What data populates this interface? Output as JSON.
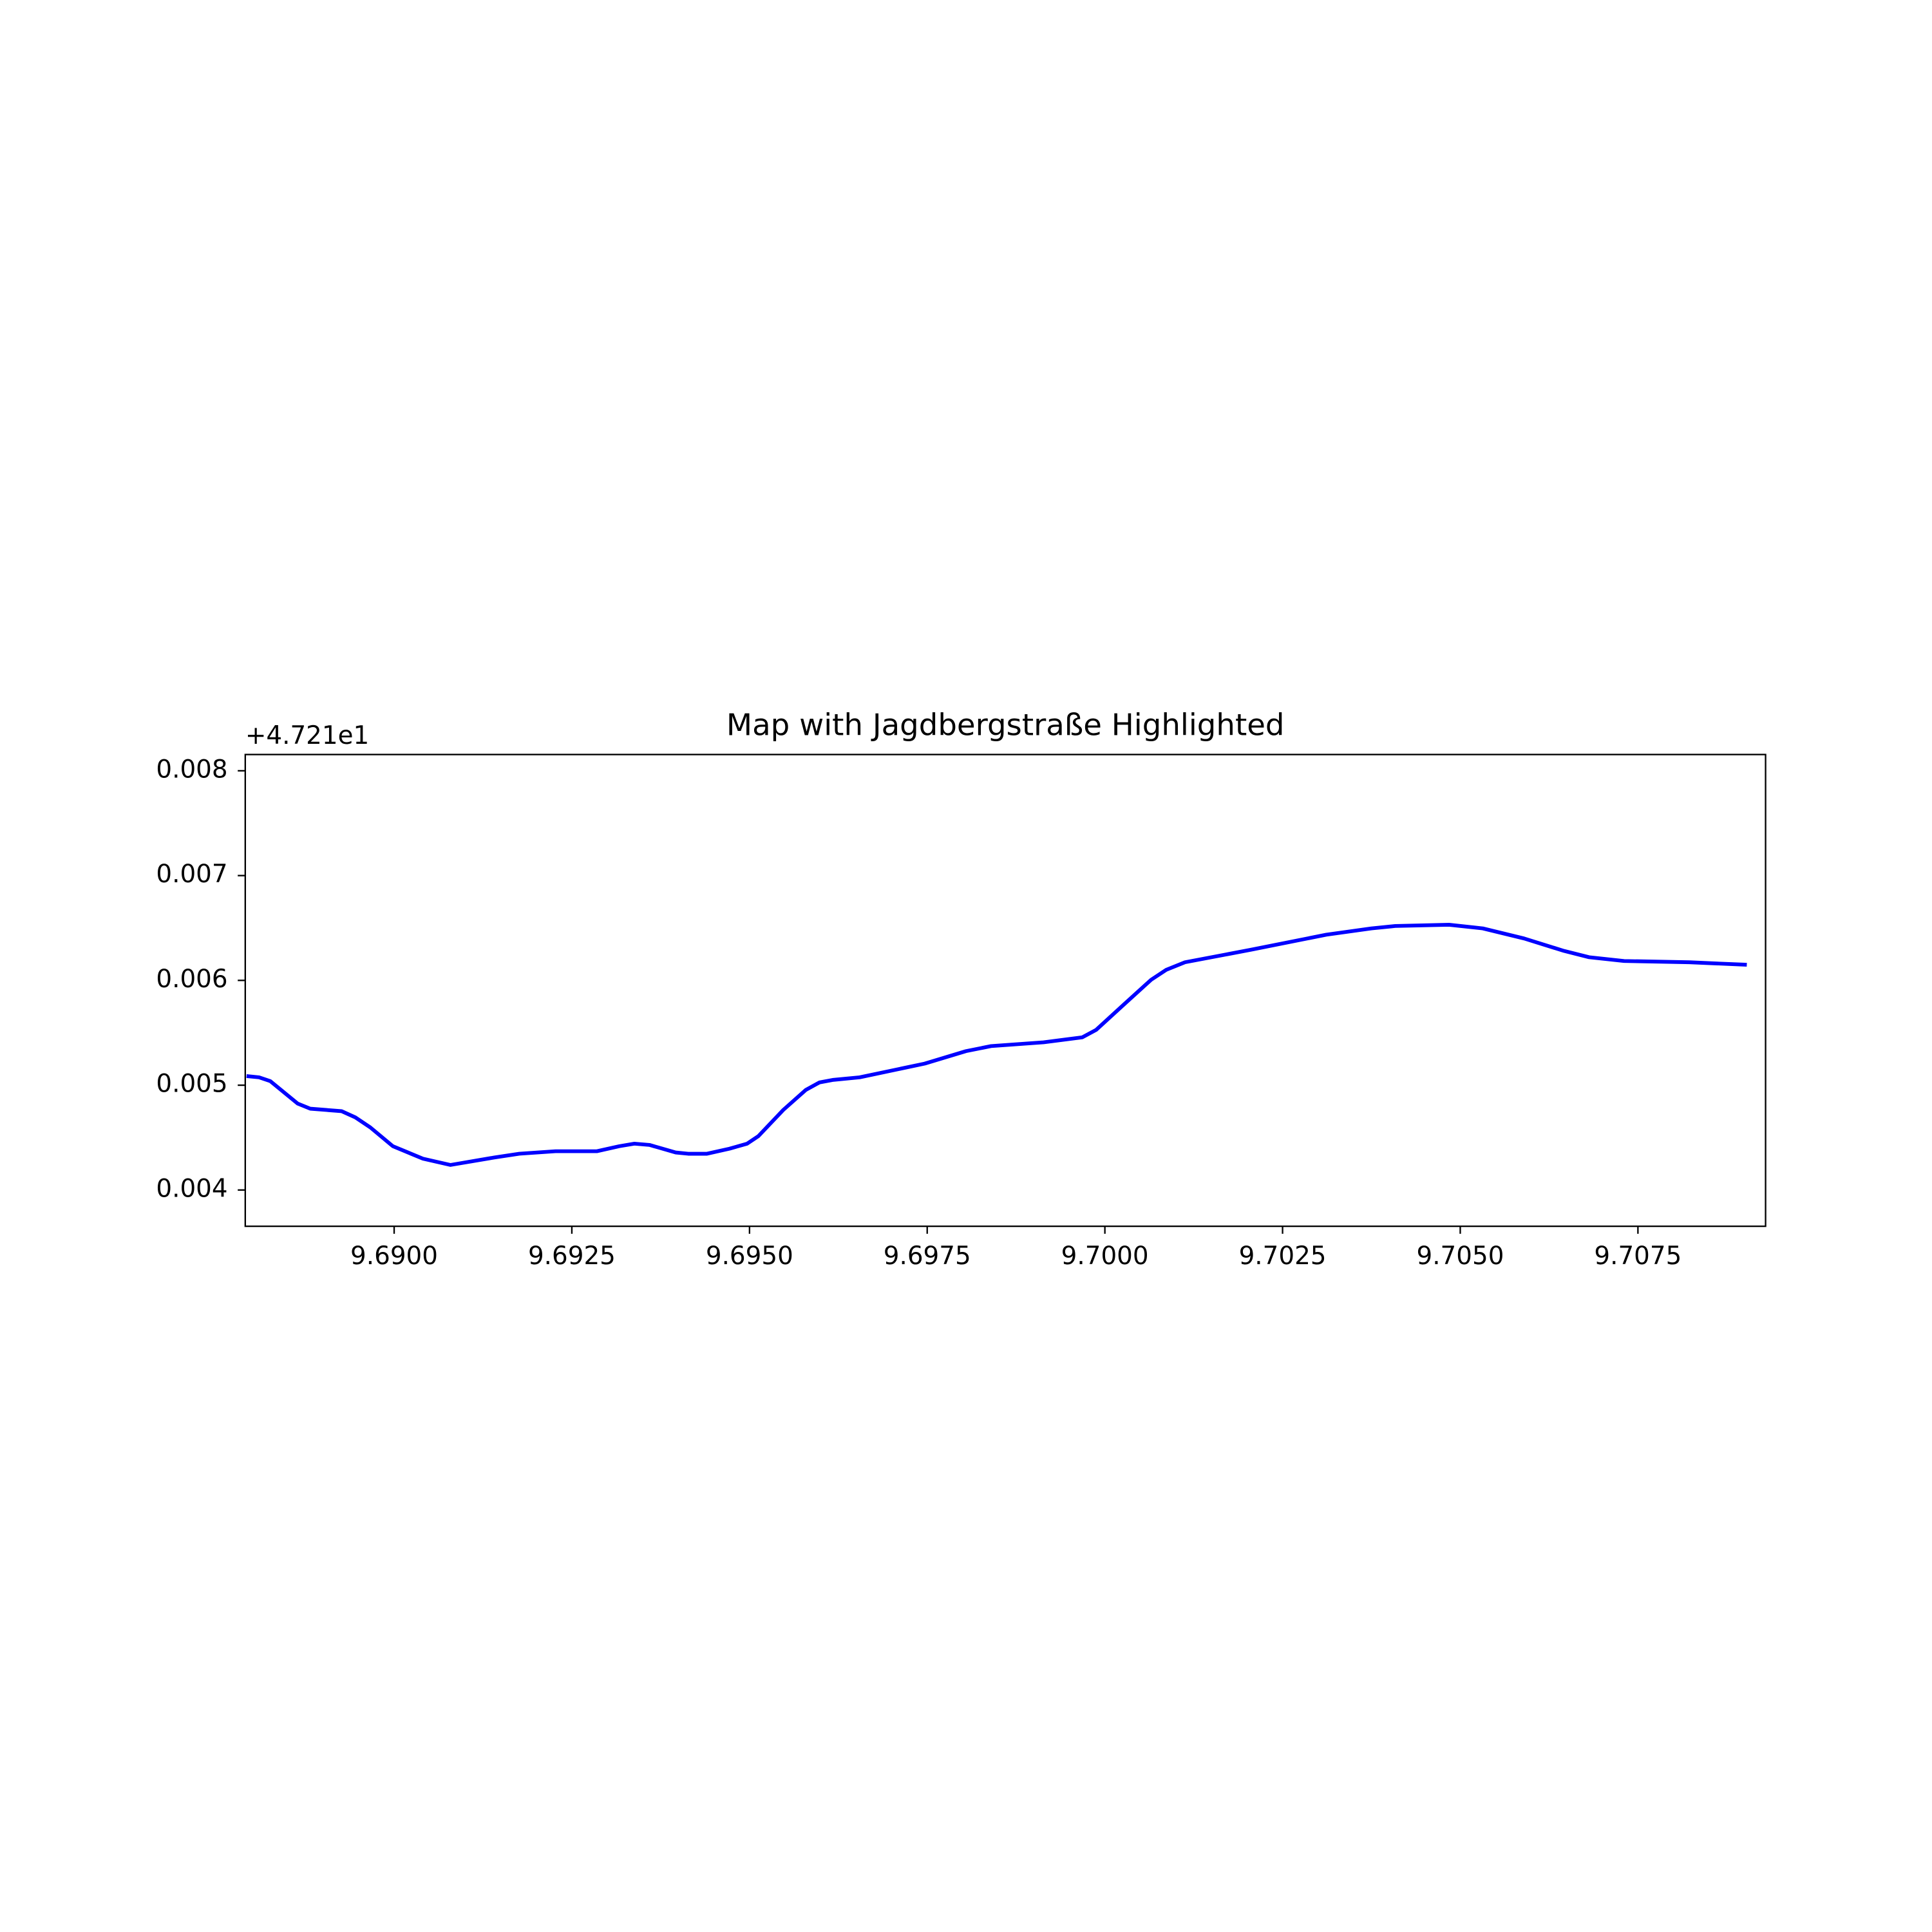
{
  "chart_data": {
    "type": "line",
    "title": "Map with Jagdbergstraße Highlighted",
    "y_offset_label": "+4.721e1",
    "x": [
      9.687923,
      9.688099,
      9.688257,
      9.688644,
      9.68882,
      9.689261,
      9.689454,
      9.689665,
      9.689982,
      9.690405,
      9.690792,
      9.691408,
      9.691761,
      9.692271,
      9.692852,
      9.693169,
      9.69338,
      9.693592,
      9.693961,
      9.694137,
      9.694401,
      9.694718,
      9.694965,
      9.695123,
      9.695475,
      9.695792,
      9.695986,
      9.69618,
      9.696549,
      9.697465,
      9.698046,
      9.698398,
      9.699137,
      9.699683,
      9.699877,
      9.700282,
      9.700651,
      9.700863,
      9.701127,
      9.70206,
      9.703116,
      9.70375,
      9.704085,
      9.704842,
      9.705317,
      9.705898,
      9.706461,
      9.706813,
      9.707306,
      9.708222,
      9.709032
    ],
    "series": [
      {
        "color": "#0000ff",
        "values": [
          0.005087,
          0.005075,
          0.005039,
          0.004824,
          0.004776,
          0.004752,
          0.004693,
          0.004597,
          0.004418,
          0.004299,
          0.004239,
          0.00431,
          0.004346,
          0.00437,
          0.00437,
          0.004418,
          0.004442,
          0.00443,
          0.004358,
          0.004346,
          0.004346,
          0.004394,
          0.004442,
          0.004513,
          0.004764,
          0.004955,
          0.005027,
          0.005051,
          0.005075,
          0.005206,
          0.005325,
          0.005373,
          0.005409,
          0.005457,
          0.005528,
          0.005779,
          0.006006,
          0.006101,
          0.006173,
          0.006293,
          0.006436,
          0.006496,
          0.006519,
          0.006531,
          0.006496,
          0.0064,
          0.006281,
          0.006221,
          0.006185,
          0.006173,
          0.006149
        ]
      }
    ],
    "xlim": [
      9.687905,
      9.709296
    ],
    "ylim": [
      0.003654,
      0.008155
    ],
    "xticks": [
      {
        "value": 9.69,
        "label": "9.6900"
      },
      {
        "value": 9.6925,
        "label": "9.6925"
      },
      {
        "value": 9.695,
        "label": "9.6950"
      },
      {
        "value": 9.6975,
        "label": "9.6975"
      },
      {
        "value": 9.7,
        "label": "9.7000"
      },
      {
        "value": 9.7025,
        "label": "9.7025"
      },
      {
        "value": 9.705,
        "label": "9.7050"
      },
      {
        "value": 9.7075,
        "label": "9.7075"
      }
    ],
    "yticks": [
      0.004,
      0.005,
      0.006,
      0.007,
      0.008
    ],
    "grid": false
  }
}
